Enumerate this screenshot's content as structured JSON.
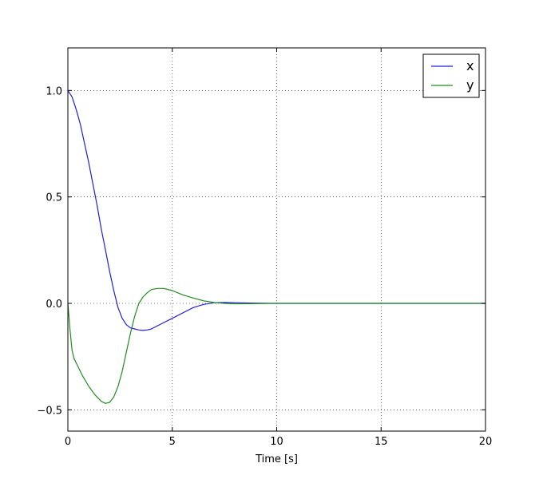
{
  "chart_data": {
    "type": "line",
    "title": "",
    "xlabel": "Time [s]",
    "ylabel": "",
    "xlim": [
      0,
      20
    ],
    "ylim": [
      -0.6,
      1.2
    ],
    "xticks": [
      0,
      5,
      10,
      15,
      20
    ],
    "yticks": [
      -0.5,
      0.0,
      0.5,
      1.0
    ],
    "xtick_labels": [
      "0",
      "5",
      "10",
      "15",
      "20"
    ],
    "ytick_labels": [
      "−0.5",
      "0.0",
      "0.5",
      "1.0"
    ],
    "grid": true,
    "legend": "top-right",
    "series": [
      {
        "name": "x",
        "color": "#1f1fdd",
        "x": [
          0,
          0.2,
          0.4,
          0.6,
          0.8,
          1.0,
          1.2,
          1.4,
          1.6,
          1.8,
          2.0,
          2.2,
          2.4,
          2.6,
          2.8,
          3.0,
          3.2,
          3.4,
          3.6,
          3.8,
          4.0,
          4.3,
          4.6,
          5.0,
          5.5,
          6.0,
          6.5,
          7.0,
          7.5,
          8.0,
          9.0,
          10.0,
          12.0,
          15.0,
          20.0
        ],
        "y": [
          1.0,
          0.97,
          0.91,
          0.84,
          0.75,
          0.66,
          0.56,
          0.46,
          0.35,
          0.25,
          0.15,
          0.06,
          -0.02,
          -0.07,
          -0.1,
          -0.115,
          -0.12,
          -0.125,
          -0.127,
          -0.125,
          -0.12,
          -0.105,
          -0.09,
          -0.07,
          -0.045,
          -0.02,
          -0.005,
          0.003,
          0.004,
          0.003,
          0.001,
          0.0,
          0.0,
          0.0,
          0.0
        ]
      },
      {
        "name": "y",
        "color": "#228b22",
        "x": [
          0,
          0.1,
          0.2,
          0.3,
          0.5,
          0.7,
          1.0,
          1.3,
          1.6,
          1.8,
          2.0,
          2.2,
          2.4,
          2.6,
          2.8,
          3.0,
          3.2,
          3.4,
          3.6,
          3.8,
          4.0,
          4.3,
          4.6,
          5.0,
          5.5,
          6.0,
          6.5,
          7.0,
          7.5,
          8.0,
          9.0,
          10.0,
          12.0,
          15.0,
          20.0
        ],
        "y": [
          0.0,
          -0.12,
          -0.22,
          -0.26,
          -0.3,
          -0.34,
          -0.39,
          -0.43,
          -0.46,
          -0.47,
          -0.465,
          -0.44,
          -0.39,
          -0.32,
          -0.23,
          -0.14,
          -0.06,
          0.0,
          0.03,
          0.05,
          0.065,
          0.07,
          0.07,
          0.06,
          0.04,
          0.025,
          0.012,
          0.004,
          0.0,
          -0.002,
          -0.001,
          0.0,
          0.0,
          0.0,
          0.0
        ]
      }
    ]
  }
}
